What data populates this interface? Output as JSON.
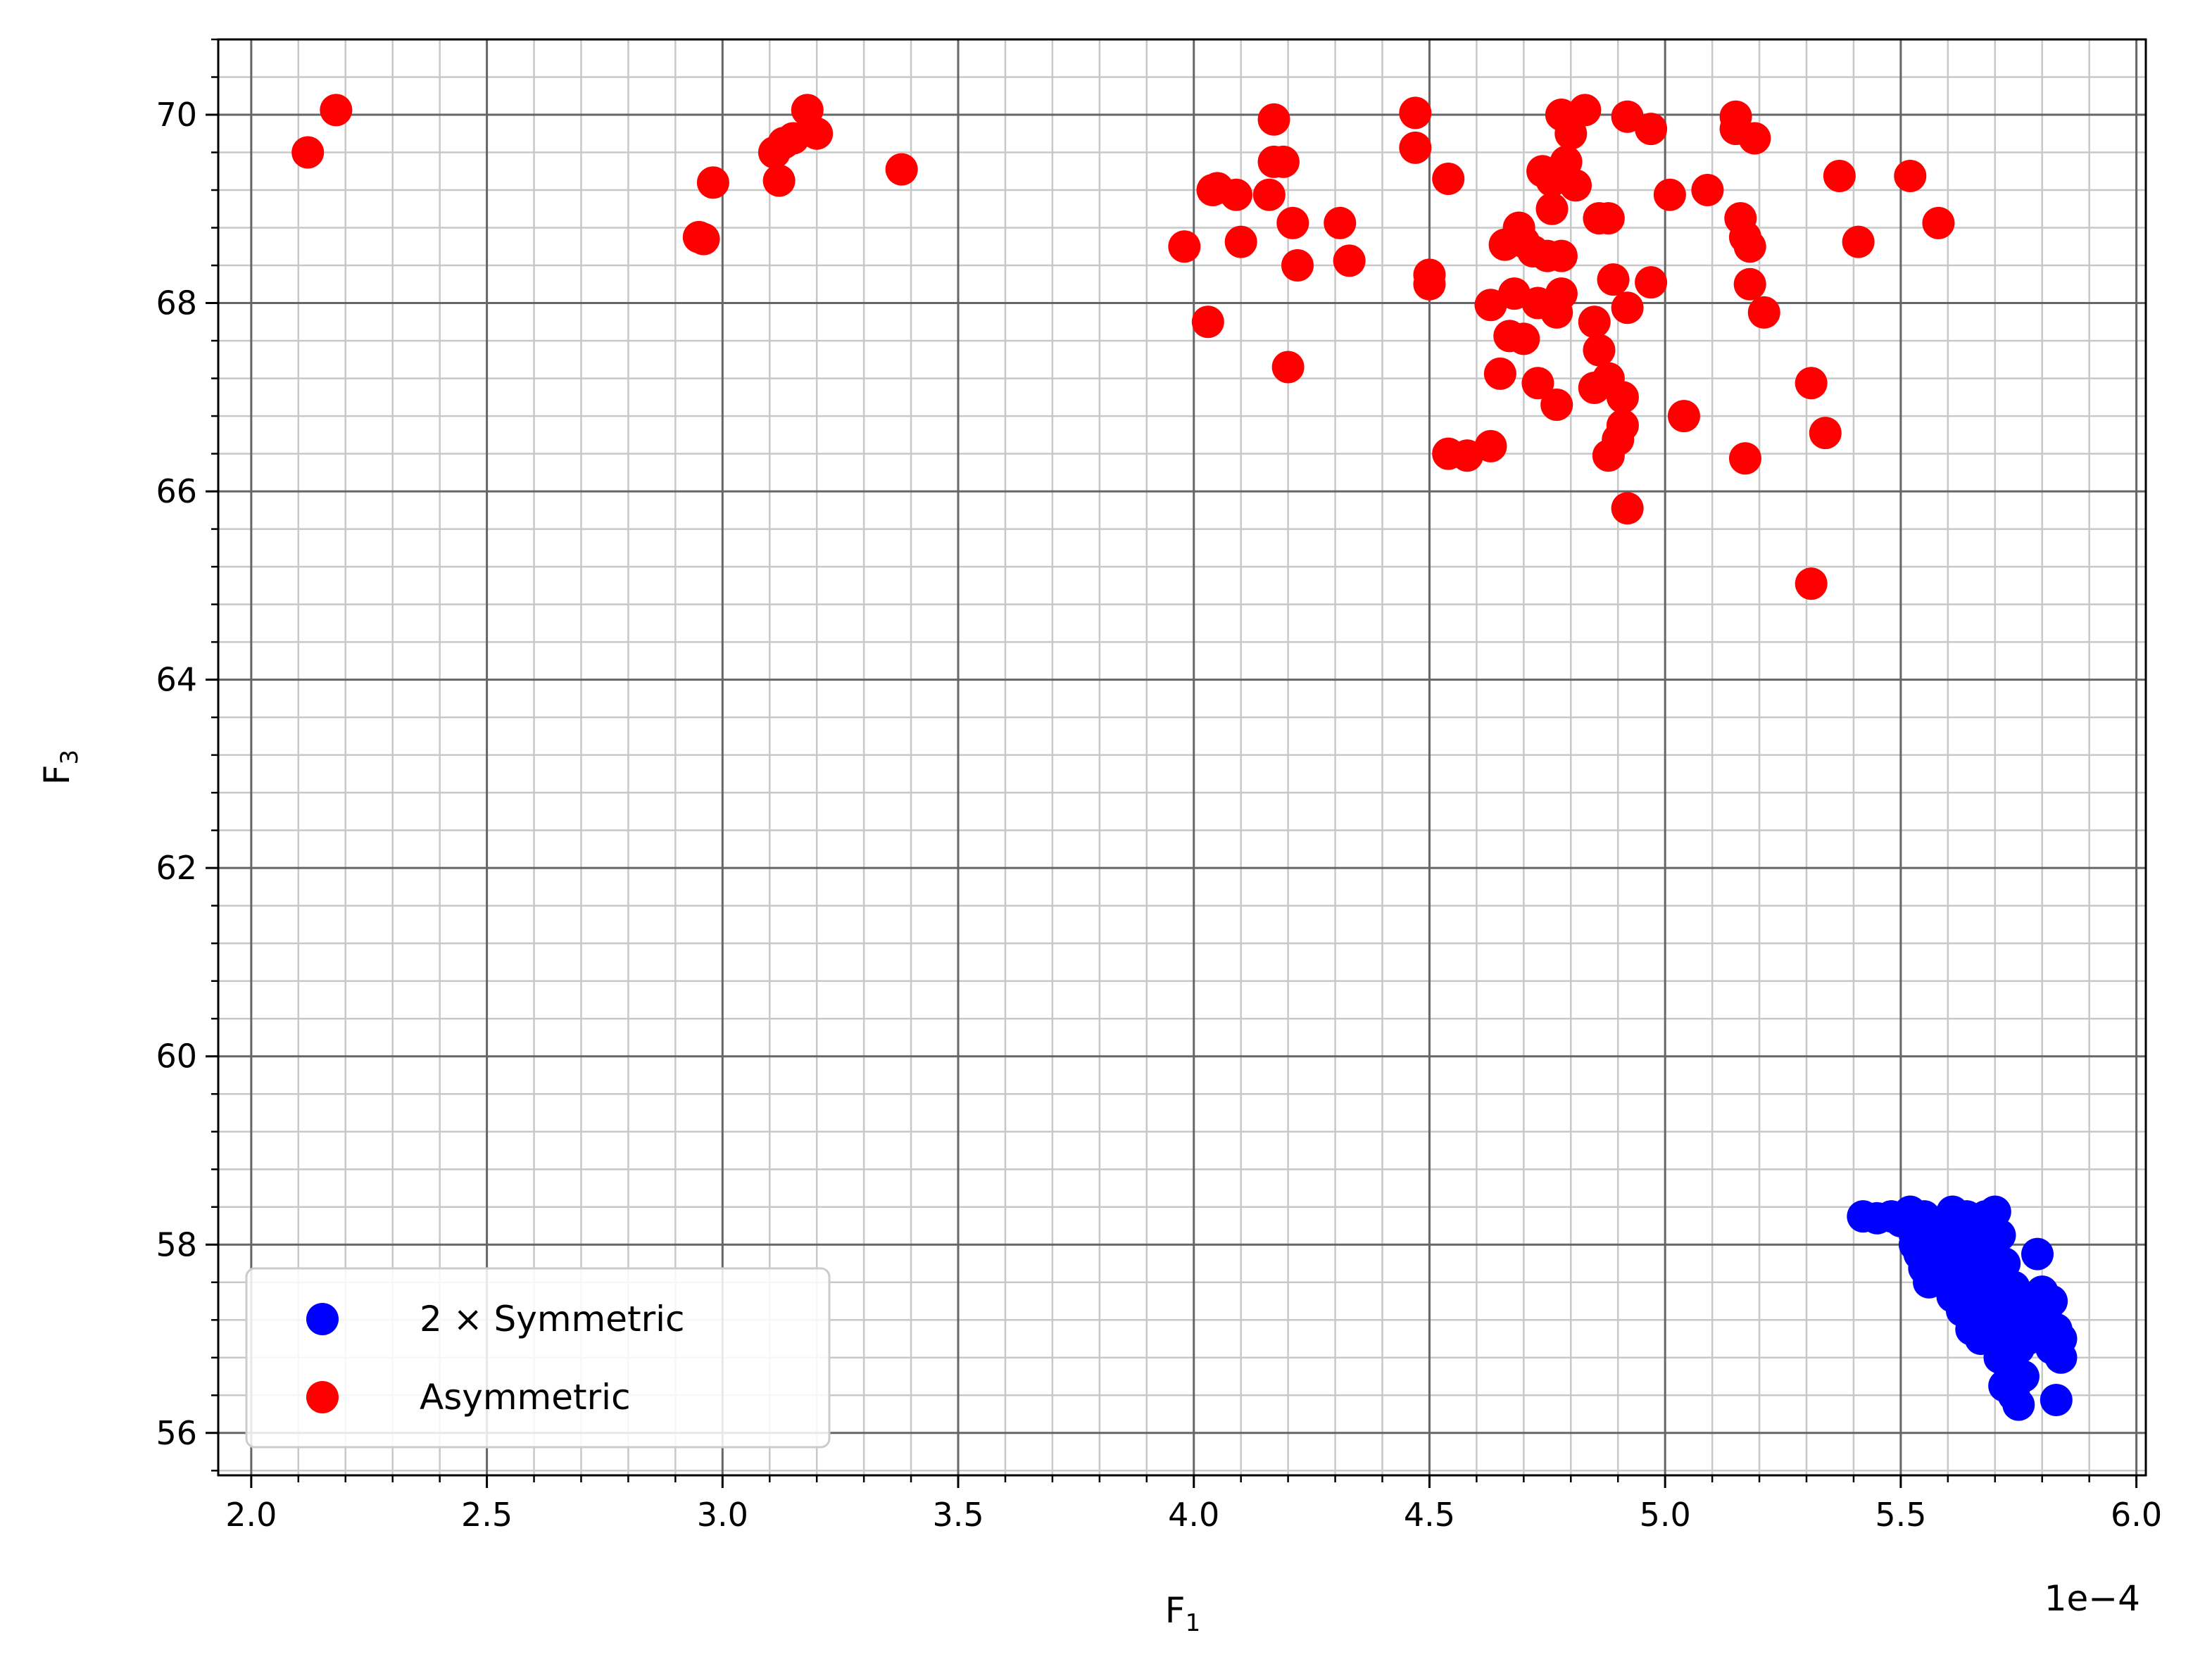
{
  "chart_data": {
    "type": "scatter",
    "xlabel_main": "F",
    "xlabel_sub": "1",
    "ylabel_main": "F",
    "ylabel_sub": "3",
    "x_offset_label": "1e−4",
    "xlim": [
      1.93,
      6.02
    ],
    "ylim": [
      55.55,
      70.8
    ],
    "xticks": [
      "2.0",
      "2.5",
      "3.0",
      "3.5",
      "4.0",
      "4.5",
      "5.0",
      "5.5",
      "6.0"
    ],
    "yticks": [
      "56",
      "58",
      "60",
      "62",
      "64",
      "66",
      "68",
      "70"
    ],
    "grid": "major and minor",
    "legend_position": "lower-left",
    "series": [
      {
        "name": "2 × Symmetric",
        "color": "#0000ff",
        "points": [
          [
            5.42,
            58.3
          ],
          [
            5.45,
            58.28
          ],
          [
            5.48,
            58.3
          ],
          [
            5.5,
            58.25
          ],
          [
            5.52,
            58.35
          ],
          [
            5.53,
            58.1
          ],
          [
            5.54,
            57.9
          ],
          [
            5.55,
            58.3
          ],
          [
            5.56,
            58.2
          ],
          [
            5.57,
            58.05
          ],
          [
            5.58,
            57.85
          ],
          [
            5.59,
            58.25
          ],
          [
            5.6,
            58.0
          ],
          [
            5.6,
            57.7
          ],
          [
            5.61,
            58.35
          ],
          [
            5.62,
            58.1
          ],
          [
            5.62,
            57.6
          ],
          [
            5.63,
            57.9
          ],
          [
            5.63,
            57.3
          ],
          [
            5.64,
            58.3
          ],
          [
            5.64,
            57.5
          ],
          [
            5.65,
            57.1
          ],
          [
            5.65,
            57.8
          ],
          [
            5.66,
            58.2
          ],
          [
            5.66,
            57.4
          ],
          [
            5.67,
            57.7
          ],
          [
            5.67,
            57.0
          ],
          [
            5.68,
            58.3
          ],
          [
            5.68,
            57.5
          ],
          [
            5.69,
            57.2
          ],
          [
            5.69,
            57.9
          ],
          [
            5.7,
            58.35
          ],
          [
            5.7,
            57.6
          ],
          [
            5.71,
            58.1
          ],
          [
            5.71,
            56.8
          ],
          [
            5.72,
            57.3
          ],
          [
            5.72,
            56.5
          ],
          [
            5.73,
            57.0
          ],
          [
            5.73,
            56.7
          ],
          [
            5.74,
            57.2
          ],
          [
            5.74,
            56.4
          ],
          [
            5.75,
            56.3
          ],
          [
            5.75,
            56.9
          ],
          [
            5.76,
            57.1
          ],
          [
            5.76,
            56.6
          ],
          [
            5.77,
            57.0
          ],
          [
            5.78,
            57.3
          ],
          [
            5.79,
            57.9
          ],
          [
            5.8,
            57.5
          ],
          [
            5.81,
            57.2
          ],
          [
            5.82,
            57.4
          ],
          [
            5.82,
            56.9
          ],
          [
            5.83,
            57.1
          ],
          [
            5.83,
            56.35
          ],
          [
            5.84,
            56.8
          ],
          [
            5.84,
            57.0
          ],
          [
            5.55,
            57.75
          ],
          [
            5.58,
            58.0
          ],
          [
            5.6,
            58.15
          ],
          [
            5.65,
            57.95
          ],
          [
            5.68,
            57.85
          ],
          [
            5.7,
            57.4
          ],
          [
            5.72,
            57.8
          ],
          [
            5.74,
            57.55
          ],
          [
            5.53,
            58.0
          ],
          [
            5.56,
            57.6
          ],
          [
            5.61,
            57.45
          ],
          [
            5.66,
            57.25
          ]
        ]
      },
      {
        "name": "Asymmetric",
        "color": "#ff0000",
        "points": [
          [
            2.12,
            69.6
          ],
          [
            2.18,
            70.05
          ],
          [
            2.95,
            68.7
          ],
          [
            2.96,
            68.68
          ],
          [
            2.98,
            69.28
          ],
          [
            3.11,
            69.6
          ],
          [
            3.12,
            69.3
          ],
          [
            3.13,
            69.7
          ],
          [
            3.15,
            69.75
          ],
          [
            3.18,
            70.05
          ],
          [
            3.2,
            69.8
          ],
          [
            3.38,
            69.42
          ],
          [
            3.98,
            68.6
          ],
          [
            4.03,
            67.8
          ],
          [
            4.04,
            69.2
          ],
          [
            4.05,
            69.22
          ],
          [
            4.09,
            69.15
          ],
          [
            4.1,
            68.65
          ],
          [
            4.16,
            69.15
          ],
          [
            4.17,
            69.95
          ],
          [
            4.17,
            69.5
          ],
          [
            4.19,
            69.5
          ],
          [
            4.2,
            67.32
          ],
          [
            4.21,
            68.85
          ],
          [
            4.22,
            68.4
          ],
          [
            4.31,
            68.85
          ],
          [
            4.33,
            68.45
          ],
          [
            4.47,
            70.02
          ],
          [
            4.47,
            69.65
          ],
          [
            4.5,
            68.3
          ],
          [
            4.5,
            68.2
          ],
          [
            4.54,
            69.32
          ],
          [
            4.54,
            66.4
          ],
          [
            4.58,
            66.38
          ],
          [
            4.63,
            66.48
          ],
          [
            4.63,
            67.98
          ],
          [
            4.65,
            67.25
          ],
          [
            4.66,
            68.62
          ],
          [
            4.67,
            67.65
          ],
          [
            4.68,
            68.1
          ],
          [
            4.69,
            68.8
          ],
          [
            4.7,
            68.65
          ],
          [
            4.7,
            67.62
          ],
          [
            4.72,
            68.55
          ],
          [
            4.73,
            67.15
          ],
          [
            4.73,
            68.0
          ],
          [
            4.74,
            69.4
          ],
          [
            4.75,
            68.5
          ],
          [
            4.76,
            69.0
          ],
          [
            4.76,
            69.3
          ],
          [
            4.77,
            66.92
          ],
          [
            4.77,
            67.9
          ],
          [
            4.78,
            68.5
          ],
          [
            4.78,
            70.0
          ],
          [
            4.78,
            68.1
          ],
          [
            4.79,
            69.5
          ],
          [
            4.8,
            69.8
          ],
          [
            4.81,
            69.25
          ],
          [
            4.83,
            70.05
          ],
          [
            4.85,
            67.8
          ],
          [
            4.85,
            67.1
          ],
          [
            4.86,
            68.9
          ],
          [
            4.86,
            67.5
          ],
          [
            4.88,
            68.9
          ],
          [
            4.88,
            67.2
          ],
          [
            4.88,
            66.38
          ],
          [
            4.89,
            68.25
          ],
          [
            4.9,
            66.55
          ],
          [
            4.91,
            67.0
          ],
          [
            4.91,
            66.7
          ],
          [
            4.92,
            65.82
          ],
          [
            4.92,
            67.95
          ],
          [
            4.92,
            69.98
          ],
          [
            4.97,
            69.85
          ],
          [
            4.97,
            68.22
          ],
          [
            5.01,
            69.15
          ],
          [
            5.04,
            66.8
          ],
          [
            5.09,
            69.2
          ],
          [
            5.15,
            69.98
          ],
          [
            5.15,
            69.85
          ],
          [
            5.16,
            68.9
          ],
          [
            5.17,
            68.7
          ],
          [
            5.17,
            66.35
          ],
          [
            5.18,
            68.2
          ],
          [
            5.18,
            68.6
          ],
          [
            5.19,
            69.75
          ],
          [
            5.21,
            67.9
          ],
          [
            5.31,
            67.15
          ],
          [
            5.31,
            65.02
          ],
          [
            5.34,
            66.62
          ],
          [
            5.37,
            69.35
          ],
          [
            5.41,
            68.65
          ],
          [
            5.52,
            69.35
          ],
          [
            5.58,
            68.85
          ]
        ]
      }
    ]
  }
}
